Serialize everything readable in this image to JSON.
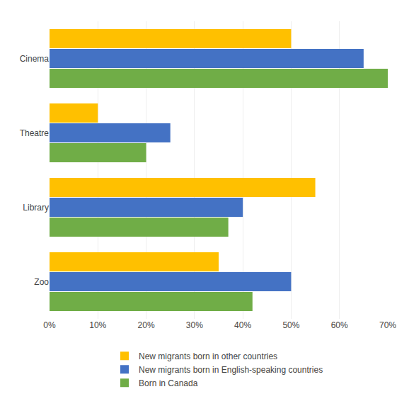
{
  "chart_data": {
    "type": "bar",
    "orientation": "horizontal",
    "categories": [
      "Zoo",
      "Library",
      "Theatre",
      "Cinema"
    ],
    "series": [
      {
        "name": "New migrants born in other countries",
        "color": "#FFC000",
        "values": [
          35,
          55,
          10,
          50
        ]
      },
      {
        "name": "New migrants born in English-speaking countries",
        "color": "#4472C4",
        "values": [
          50,
          40,
          25,
          65
        ]
      },
      {
        "name": "Born in Canada",
        "color": "#70AD47",
        "values": [
          42,
          37,
          20,
          70
        ]
      }
    ],
    "xlim": [
      0,
      70
    ],
    "xticks": [
      {
        "value": 0,
        "label": "0%"
      },
      {
        "value": 10,
        "label": "10%"
      },
      {
        "value": 20,
        "label": "20%"
      },
      {
        "value": 30,
        "label": "30%"
      },
      {
        "value": 40,
        "label": "40%"
      },
      {
        "value": 50,
        "label": "50%"
      },
      {
        "value": 60,
        "label": "60%"
      },
      {
        "value": 70,
        "label": "70%"
      }
    ],
    "grid": true,
    "legend": "bottom"
  }
}
